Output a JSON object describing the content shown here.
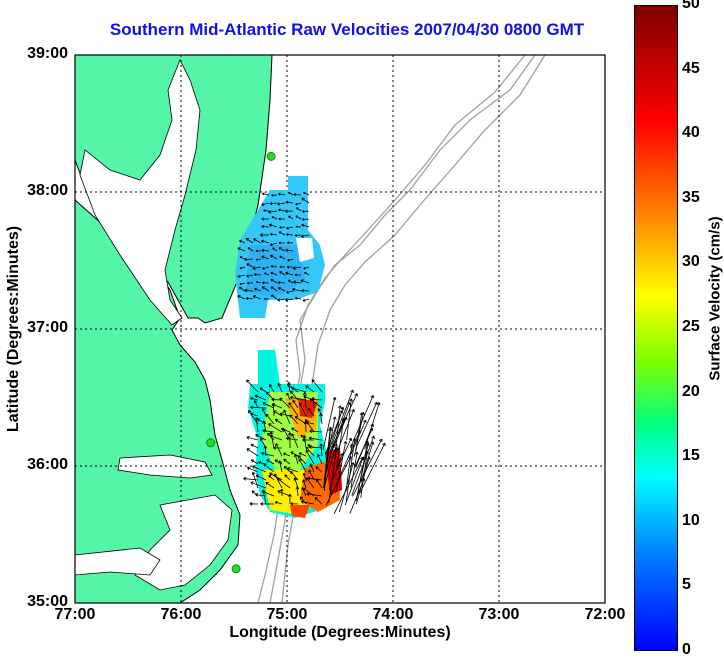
{
  "title": "Southern Mid-Atlantic Raw Velocities 2007/04/30 0800 GMT",
  "xlabel": "Longitude (Degrees:Minutes)",
  "ylabel": "Latitude (Degrees:Minutes)",
  "colorbar_label": "Surface Velocity (cm/s)",
  "lon_ticks": [
    {
      "value": -77,
      "label": "77:00"
    },
    {
      "value": -76,
      "label": "76:00"
    },
    {
      "value": -75,
      "label": "75:00"
    },
    {
      "value": -74,
      "label": "74:00"
    },
    {
      "value": -73,
      "label": "73:00"
    },
    {
      "value": -72,
      "label": "72:00"
    }
  ],
  "lat_ticks": [
    {
      "value": 39,
      "label": "39:00"
    },
    {
      "value": 38,
      "label": "38:00"
    },
    {
      "value": 37,
      "label": "37:00"
    },
    {
      "value": 36,
      "label": "36:00"
    },
    {
      "value": 35,
      "label": "35:00"
    }
  ],
  "colorbar": {
    "min": 0,
    "max": 50,
    "ticks": [
      "50",
      "45",
      "40",
      "35",
      "30",
      "25",
      "20",
      "15",
      "10",
      "5",
      "0"
    ]
  },
  "colors": {
    "land": "#55f5a8",
    "water": "#ffffff",
    "coastline": "#000000",
    "bathymetry": "#a0a0a0",
    "title": "#1010e8",
    "station": "#22dd22",
    "vectors": "#000000"
  },
  "stations": [
    {
      "name": "",
      "lon": -75.15,
      "lat": 38.26
    },
    {
      "name": "",
      "lon": -75.72,
      "lat": 36.17
    },
    {
      "name": "",
      "lon": -75.48,
      "lat": 35.25
    }
  ],
  "grid": "dotted",
  "projection": "plate carree",
  "lon_range": [
    -77,
    -72
  ],
  "lat_range": [
    35,
    39
  ]
}
